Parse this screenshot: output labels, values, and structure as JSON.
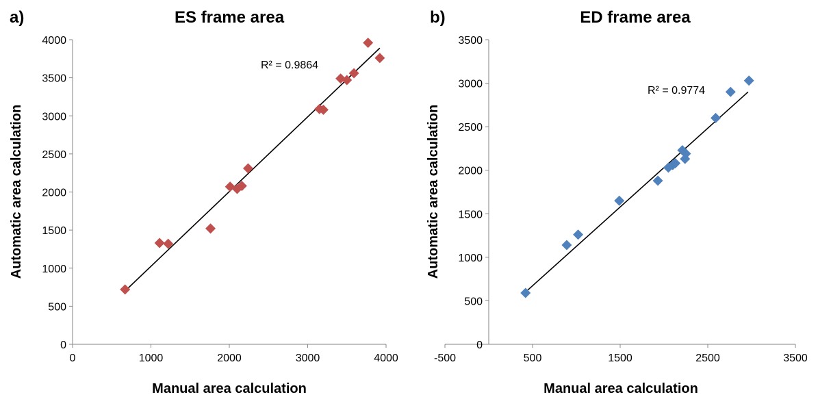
{
  "chart_data": [
    {
      "type": "scatter",
      "panel_label": "a)",
      "title": "ES frame area",
      "xlabel": "Manual area calculation",
      "ylabel": "Automatic area calculation",
      "xlim": [
        0,
        4000
      ],
      "ylim": [
        0,
        4000
      ],
      "xticks": [
        0,
        1000,
        2000,
        3000,
        4000
      ],
      "yticks": [
        0,
        500,
        1000,
        1500,
        2000,
        2500,
        3000,
        3500,
        4000
      ],
      "marker_color": "#c0504d",
      "annotation": "R² = 0.9864",
      "trendline": {
        "x": [
          670,
          3920
        ],
        "y": [
          700,
          3890
        ]
      },
      "points": [
        {
          "x": 670,
          "y": 720
        },
        {
          "x": 1110,
          "y": 1330
        },
        {
          "x": 1220,
          "y": 1320
        },
        {
          "x": 1760,
          "y": 1520
        },
        {
          "x": 2010,
          "y": 2070
        },
        {
          "x": 2100,
          "y": 2040
        },
        {
          "x": 2160,
          "y": 2080
        },
        {
          "x": 2240,
          "y": 2310
        },
        {
          "x": 3150,
          "y": 3090
        },
        {
          "x": 3200,
          "y": 3080
        },
        {
          "x": 3420,
          "y": 3490
        },
        {
          "x": 3500,
          "y": 3470
        },
        {
          "x": 3590,
          "y": 3560
        },
        {
          "x": 3770,
          "y": 3960
        },
        {
          "x": 3920,
          "y": 3760
        }
      ]
    },
    {
      "type": "scatter",
      "panel_label": "b)",
      "title": "ED frame area",
      "xlabel": "Manual area calculation",
      "ylabel": "Automatic area calculation",
      "xlim": [
        -500,
        3500
      ],
      "ylim": [
        0,
        3500
      ],
      "xticks": [
        -500,
        500,
        1500,
        2500,
        3500
      ],
      "yticks": [
        0,
        500,
        1000,
        1500,
        2000,
        2500,
        3000,
        3500
      ],
      "marker_color": "#4f81bd",
      "annotation": "R² = 0.9774",
      "trendline": {
        "x": [
          420,
          2960
        ],
        "y": [
          600,
          2900
        ]
      },
      "points": [
        {
          "x": 420,
          "y": 590
        },
        {
          "x": 890,
          "y": 1140
        },
        {
          "x": 1020,
          "y": 1260
        },
        {
          "x": 1490,
          "y": 1650
        },
        {
          "x": 1930,
          "y": 1880
        },
        {
          "x": 2050,
          "y": 2030
        },
        {
          "x": 2100,
          "y": 2060
        },
        {
          "x": 2130,
          "y": 2080
        },
        {
          "x": 2210,
          "y": 2230
        },
        {
          "x": 2240,
          "y": 2130
        },
        {
          "x": 2250,
          "y": 2190
        },
        {
          "x": 2590,
          "y": 2600
        },
        {
          "x": 2760,
          "y": 2900
        },
        {
          "x": 2970,
          "y": 3030
        }
      ]
    }
  ]
}
